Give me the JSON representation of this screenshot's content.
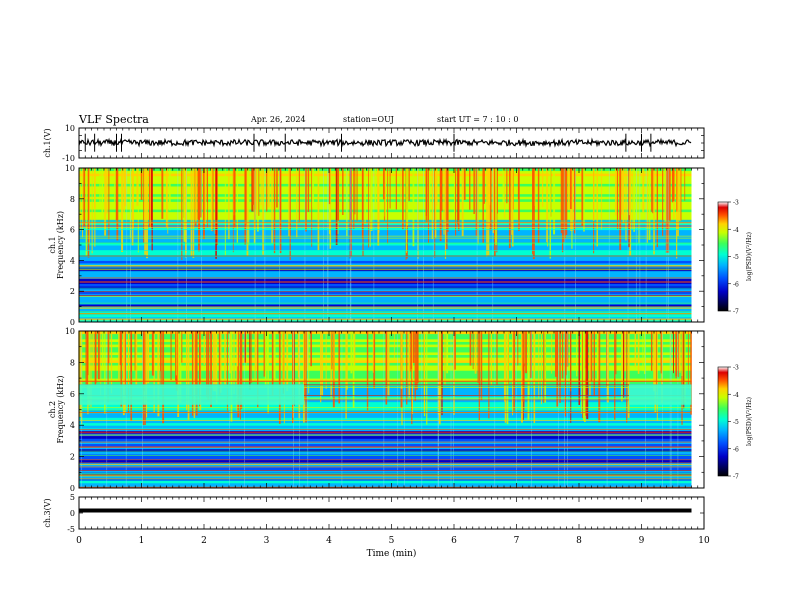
{
  "header": {
    "title": "VLF Spectra",
    "date": "Apr. 26, 2024",
    "station": "station=OUJ",
    "start": "start  UT  =   7 : 10 : 0"
  },
  "colorbar": {
    "colors": [
      "#000000",
      "#00005a",
      "#0000c8",
      "#0050ff",
      "#00b4ff",
      "#00ffd2",
      "#3cff5a",
      "#c8ff00",
      "#ffd200",
      "#ff5000",
      "#dc0000",
      "#ffffff"
    ]
  },
  "chart_data": [
    {
      "type": "line",
      "id": "ch1-waveform",
      "ylabel": "ch.1(V)",
      "ylim": [
        -10,
        10
      ],
      "yticks": [
        "10",
        "-10"
      ],
      "xlim": [
        0,
        10
      ],
      "baseline_v": 0.2,
      "spikes_min": [
        0.1,
        0.25,
        0.6,
        0.68,
        2.8,
        3.3,
        4.2,
        6.0,
        8.75,
        9.0,
        9.15
      ],
      "data_end_min": 9.8
    },
    {
      "type": "heatmap",
      "id": "ch1-spectrogram",
      "ylabel_lines": [
        "ch.1",
        "Frequency (kHz)"
      ],
      "xlim": [
        0,
        10
      ],
      "ylim": [
        0,
        10
      ],
      "yticks": [
        "0",
        "2",
        "4",
        "6",
        "8",
        "10"
      ],
      "data_end_min": 9.8,
      "colorbar": {
        "label": "log(PSD)(V²/Hz)",
        "ticks": [
          "-3",
          "-4",
          "-5",
          "-6",
          "-7"
        ],
        "range": [
          -7,
          -3
        ]
      },
      "description_bands": [
        {
          "f_khz": [
            0,
            4
          ],
          "level": -5.9
        },
        {
          "f_khz": [
            4,
            7
          ],
          "level": -5.5
        },
        {
          "f_khz": [
            7,
            10
          ],
          "level": -4.7
        }
      ]
    },
    {
      "type": "heatmap",
      "id": "ch2-spectrogram",
      "ylabel_lines": [
        "ch.2",
        "Frequency (kHz)"
      ],
      "xlim": [
        0,
        10
      ],
      "ylim": [
        0,
        10
      ],
      "yticks": [
        "0",
        "2",
        "4",
        "6",
        "8",
        "10"
      ],
      "data_end_min": 9.8,
      "colorbar": {
        "label": "log(PSD)(V²/Hz)",
        "ticks": [
          "-3",
          "-4",
          "-5",
          "-6",
          "-7"
        ],
        "range": [
          -7,
          -3
        ]
      },
      "band_6khz_minutes": [
        [
          0,
          3.6
        ],
        [
          8.8,
          9.8
        ]
      ]
    },
    {
      "type": "line",
      "id": "ch3-waveform",
      "ylabel": "ch.3(V)",
      "ylim": [
        -5,
        5
      ],
      "yticks": [
        "5",
        "0",
        "-5"
      ],
      "xlim": [
        0,
        10
      ],
      "baseline_v": 0.8,
      "data_end_min": 9.8,
      "xlabel": "Time (min)",
      "xticks": [
        "0",
        "1",
        "2",
        "3",
        "4",
        "5",
        "6",
        "7",
        "8",
        "9",
        "10"
      ]
    }
  ]
}
